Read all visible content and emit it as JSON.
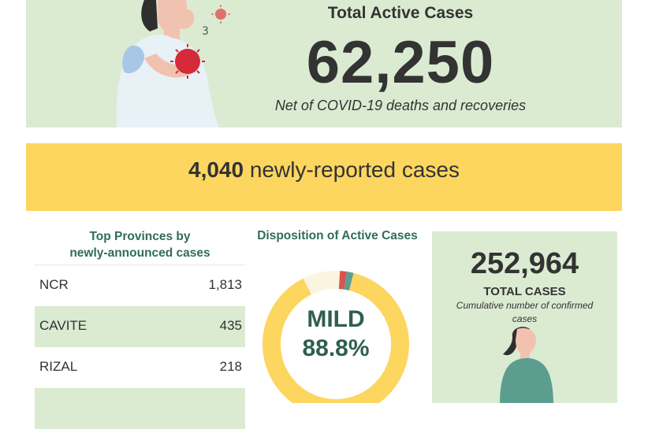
{
  "header": {
    "title": "Total Active Cases",
    "value": "62,250",
    "subtitle": "Net of COVID-19 deaths and recoveries"
  },
  "new_cases": {
    "count": "4,040",
    "label": " newly-reported cases"
  },
  "provinces": {
    "title_line1": "Top Provinces by",
    "title_line2": "newly-announced cases",
    "rows": [
      {
        "name": "NCR",
        "value": "1,813"
      },
      {
        "name": "CAVITE",
        "value": "435"
      },
      {
        "name": "RIZAL",
        "value": "218"
      }
    ]
  },
  "disposition": {
    "title": "Disposition of Active Cases",
    "center_label": "MILD",
    "center_value": "88.8%"
  },
  "total_cases": {
    "value": "252,964",
    "label": "TOTAL CASES",
    "sub": "Cumulative number of confirmed cases"
  },
  "colors": {
    "banner_green": "#daebd2",
    "accent_yellow": "#fdd660",
    "title_green": "#2f6e57",
    "mild": "#fdd660",
    "asymptomatic": "#fbf4df",
    "critical": "#d9534f",
    "severe": "#5b9e8f"
  },
  "chart_data": {
    "type": "pie",
    "title": "Disposition of Active Cases",
    "categories": [
      "MILD",
      "",
      "",
      ""
    ],
    "values": [
      88.8,
      8.2,
      1.5,
      1.5
    ],
    "colors": [
      "#fdd660",
      "#fbf4df",
      "#d9534f",
      "#5b9e8f"
    ]
  }
}
